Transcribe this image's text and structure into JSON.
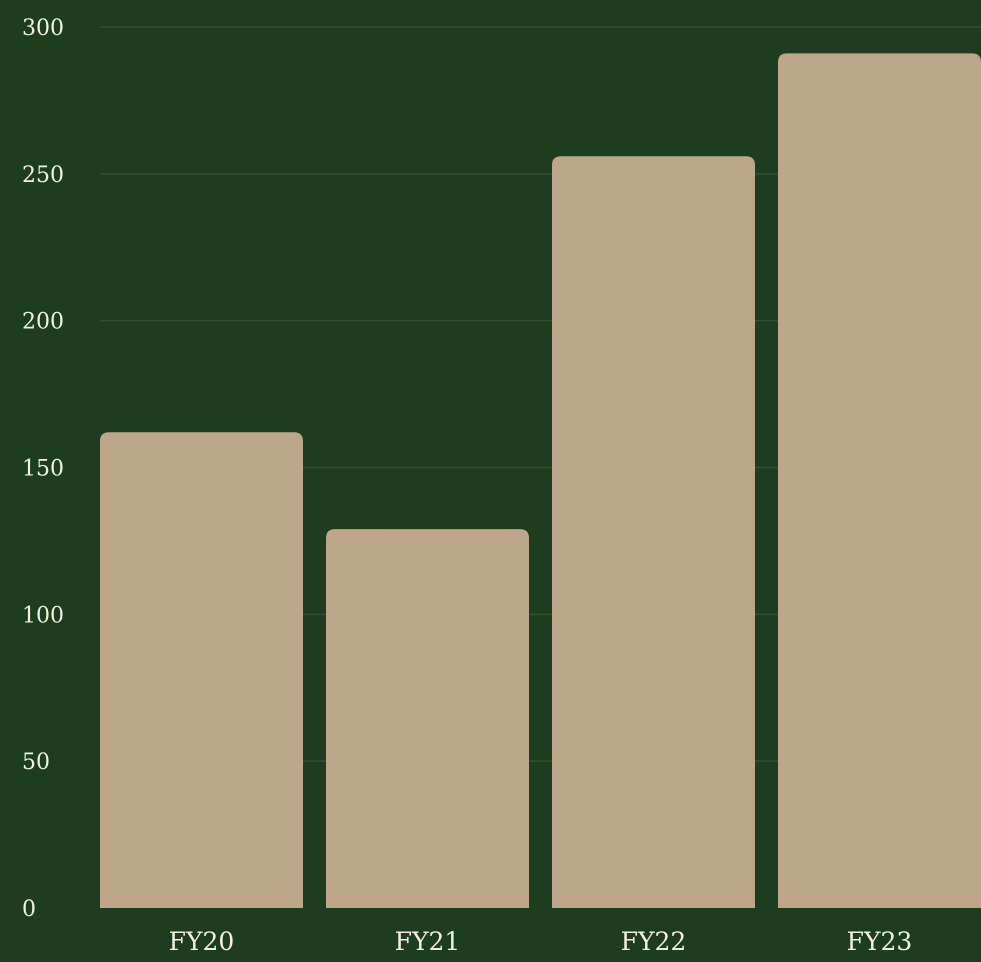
{
  "chart_data": {
    "type": "bar",
    "categories": [
      "FY20",
      "FY21",
      "FY22",
      "FY23"
    ],
    "values": [
      162,
      129,
      256,
      291
    ],
    "title": "",
    "xlabel": "",
    "ylabel": "",
    "ylim": [
      0,
      300
    ],
    "yticks": [
      0,
      50,
      100,
      150,
      200,
      250,
      300
    ],
    "ytick_labels": [
      "0",
      "50",
      "100",
      "150",
      "200",
      "250",
      "300"
    ],
    "grid": true,
    "legend": "none"
  },
  "colors": {
    "background": "#1e3d1e",
    "bar": "#bea68a",
    "text": "#f2efe6",
    "grid": "#2e5230"
  }
}
